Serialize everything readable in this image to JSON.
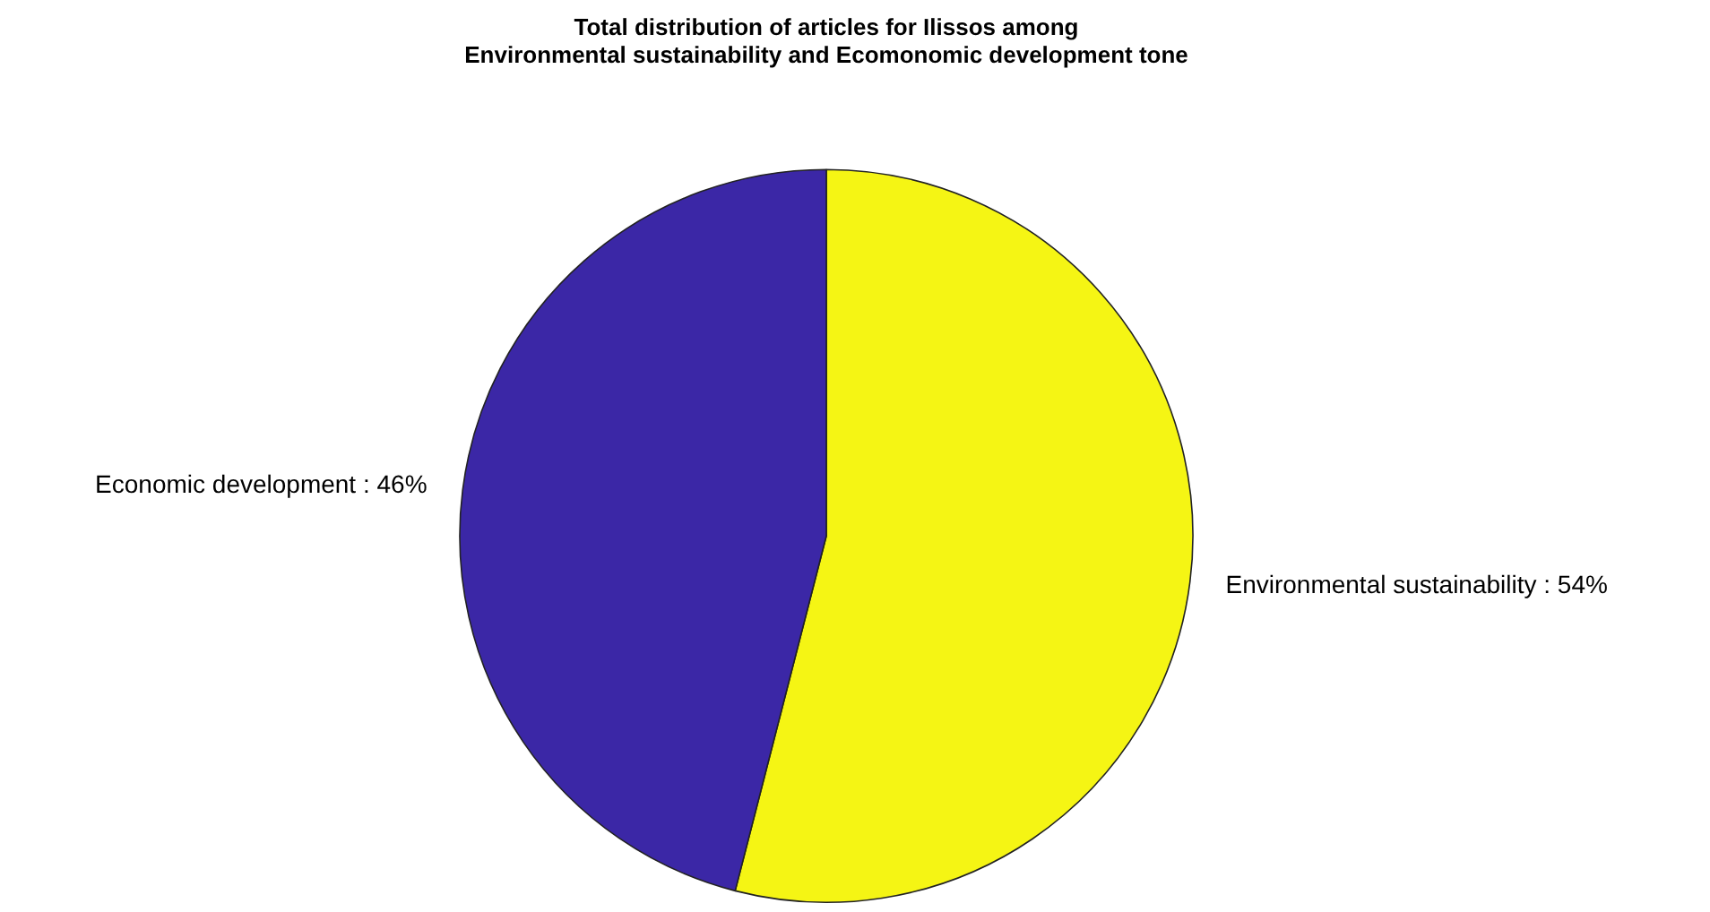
{
  "chart_data": {
    "type": "pie",
    "title": [
      "Total distribution of articles for Ilissos among",
      "Environmental sustainability and Ecomonomic development tone"
    ],
    "categories": [
      "Environmental sustainability : 54%",
      "Economic development : 46%"
    ],
    "values": [
      54,
      46
    ],
    "colors": [
      "#f5f514",
      "#3b27a6"
    ],
    "legend": false
  }
}
